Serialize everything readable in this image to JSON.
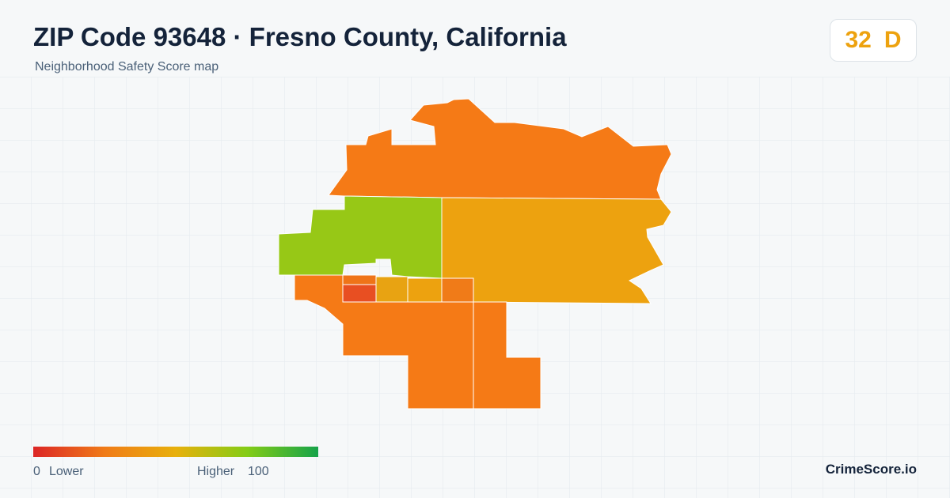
{
  "header": {
    "title": "ZIP Code 93648 · Fresno County, California",
    "subtitle": "Neighborhood Safety Score map"
  },
  "score": {
    "value": 32,
    "grade": "D"
  },
  "legend": {
    "min": 0,
    "min_label": "Lower",
    "max_label": "Higher",
    "max": 100
  },
  "brand": "CrimeScore.io"
}
